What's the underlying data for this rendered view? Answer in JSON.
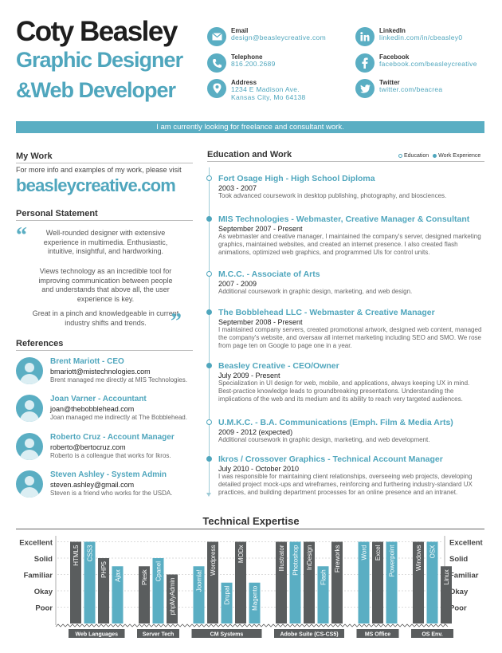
{
  "header": {
    "name": "Coty Beasley",
    "title_line1": "Graphic Designer",
    "title_line2": "&Web Developer"
  },
  "contacts": {
    "email": {
      "label": "Email",
      "value": "design@beasleycreative.com",
      "icon": "envelope-icon"
    },
    "telephone": {
      "label": "Telephone",
      "value": "816.200.2689",
      "icon": "phone-icon"
    },
    "address": {
      "label": "Address",
      "line1": "1234 E Madison Ave.",
      "line2": "Kansas City, Mo 64138",
      "icon": "map-pin-icon"
    },
    "linkedin": {
      "label": "LinkedIn",
      "value": "linkedin.com/in/cbeasley0",
      "icon": "linkedin-icon"
    },
    "facebook": {
      "label": "Facebook",
      "value": "facebook.com/beasleycreative",
      "icon": "facebook-icon"
    },
    "twitter": {
      "label": "Twitter",
      "value": "twitter.com/beacrea",
      "icon": "twitter-icon"
    }
  },
  "banner": "I am currently looking for freelance and consultant work.",
  "my_work": {
    "heading": "My Work",
    "text": "For more info and examples of my work, please visit",
    "site": "beasleycreative.com"
  },
  "personal_statement": {
    "heading": "Personal Statement",
    "paragraphs": [
      "Well-rounded designer with extensive experience in multimedia. Enthusiastic, intuitive, insightful, and hardworking.",
      "Views technology as an incredible tool for improving communication between people and understands that above all, the user experience is key.",
      "Great in a pinch and knowledgeable in current industry shifts and trends."
    ],
    "open_quote": "“",
    "close_quote": "”"
  },
  "references": {
    "heading": "References",
    "items": [
      {
        "name": "Brent Mariott - CEO",
        "email": "bmariott@mistechnologies.com",
        "note": "Brent managed me directly at MIS Technologies."
      },
      {
        "name": "Joan Varner - Accountant",
        "email": "joan@thebobblehead.com",
        "note": "Joan managed me indirectly at The Bobblehead."
      },
      {
        "name": "Roberto Cruz - Account Manager",
        "email": "roberto@bertocruz.com",
        "note": "Roberto is a colleague that works for Ikros."
      },
      {
        "name": "Steven Ashley - System Admin",
        "email": "steven.ashley@gmail.com",
        "note": "Steven is a friend who works for the USDA."
      }
    ]
  },
  "education_work": {
    "heading": "Education and Work",
    "legend": {
      "education": "Education",
      "work": "Work Experience"
    },
    "entries": [
      {
        "title": "Fort Osage High - High School Diploma",
        "dates": "2003 - 2007",
        "desc": "Took advanced coursework in desktop publishing, photography, and biosciences.",
        "kind": "education"
      },
      {
        "title": "MIS Technologies - Webmaster, Creative Manager & Consultant",
        "dates": "September 2007 - Present",
        "desc": "As webmaster and creative manager, I maintained the company's server, designed marketing graphics, maintained websites, and created an internet presence. I also created flash animations, optimized web graphics, and programmed UIs for control units.",
        "kind": "work"
      },
      {
        "title": "M.C.C. - Associate of Arts",
        "dates": "2007 - 2009",
        "desc": "Additional coursework in graphic design, marketing, and web design.",
        "kind": "education"
      },
      {
        "title": "The Bobblehead LLC - Webmaster & Creative Manager",
        "dates": "September 2008 - Present",
        "desc": "I maintained company servers, created promotional artwork, designed web content, managed the company's website, and oversaw all internet marketing including SEO and SMO. We rose from page ten on Google to page one in a year.",
        "kind": "work"
      },
      {
        "title": "Beasley Creative - CEO/Owner",
        "dates": "July 2009 - Present",
        "desc": "Specialization in UI design for web, mobile, and applications, always keeping UX in mind. Best-practice knowledge leads to groundbreaking presentations. Understanding the implications of the web and its medium and its ability to reach very targeted audiences.",
        "kind": "work"
      },
      {
        "title": "U.M.K.C. - B.A. Communications (Emph. Film & Media Arts)",
        "dates": "2009 - 2012 (expected)",
        "desc": "Additional coursework in graphic design, marketing, and web development.",
        "kind": "education"
      },
      {
        "title": "Ikros / Crossover Graphics - Technical Account Manager",
        "dates": "July 2010 - October 2010",
        "desc": "I was responsible for maintaining client relationships, overseeing web projects, developing detailed project mock-ups and wireframes, reinforcing and furthering industry-standard UX practices, and building department processes for an online presence and an intranet.",
        "kind": "work"
      }
    ]
  },
  "tech": {
    "title": "Technical Expertise"
  },
  "chart_data": {
    "type": "bar",
    "title": "Technical Expertise",
    "levels": [
      "Excellent",
      "Solid",
      "Familiar",
      "Okay",
      "Poor"
    ],
    "ylim": [
      0,
      5
    ],
    "groups": [
      {
        "name": "Web Languages",
        "items": [
          {
            "label": "HTML5",
            "value": 5
          },
          {
            "label": "CSS3",
            "value": 5
          },
          {
            "label": "PHP5",
            "value": 4
          },
          {
            "label": "Ajax",
            "value": 3.5
          }
        ]
      },
      {
        "name": "Server Tech",
        "items": [
          {
            "label": "Plesk",
            "value": 3.5
          },
          {
            "label": "Cpanel",
            "value": 4
          },
          {
            "label": "phpMyAdmin",
            "value": 3
          }
        ]
      },
      {
        "name": "CM Systems",
        "items": [
          {
            "label": "Joomla!",
            "value": 3.5
          },
          {
            "label": "Wordpress",
            "value": 5
          },
          {
            "label": "Drupal",
            "value": 2.5
          },
          {
            "label": "MODx",
            "value": 5
          },
          {
            "label": "Magento",
            "value": 2.5
          }
        ]
      },
      {
        "name": "Adobe Suite (CS-CS5)",
        "items": [
          {
            "label": "Illustrator",
            "value": 5
          },
          {
            "label": "Photoshop",
            "value": 5
          },
          {
            "label": "InDesign",
            "value": 5
          },
          {
            "label": "Flash",
            "value": 3.5
          },
          {
            "label": "Fireworks",
            "value": 5
          }
        ]
      },
      {
        "name": "MS Office",
        "items": [
          {
            "label": "Word",
            "value": 5
          },
          {
            "label": "Excel",
            "value": 5
          },
          {
            "label": "Powerpoint",
            "value": 5
          }
        ]
      },
      {
        "name": "OS Env.",
        "items": [
          {
            "label": "Windows",
            "value": 5
          },
          {
            "label": "OSX",
            "value": 5
          },
          {
            "label": "Linux",
            "value": 3.5
          }
        ]
      }
    ],
    "colors": {
      "dark": "#5a5d5e",
      "teal": "#5aaec3",
      "grid": "#cfcfcf"
    }
  }
}
